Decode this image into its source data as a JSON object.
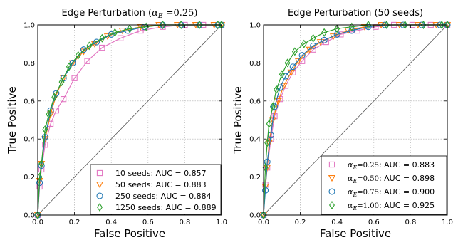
{
  "chart_data": [
    {
      "type": "line",
      "title": "Edge Perturbation (α_E =0.25)",
      "title_main": "Edge Perturbation (",
      "title_sym": "α",
      "title_sub": "E",
      "title_rest": " =0.25)",
      "xlabel": "False Positive",
      "ylabel": "True Positive",
      "xlim": [
        0,
        1
      ],
      "ylim": [
        0,
        1
      ],
      "xticks": [
        "0.0",
        "0.2",
        "0.4",
        "0.6",
        "0.8",
        "1.0"
      ],
      "yticks": [
        "0.0",
        "0.2",
        "0.4",
        "0.6",
        "0.8",
        "1.0"
      ],
      "grid": true,
      "diagonal": true,
      "legend_position": "bottom-right",
      "series": [
        {
          "name": "10 seeds: AUC = 0.857",
          "legend_prefix": "",
          "legend_label": "10 seeds: AUC = 0.857",
          "color": "#e377c2",
          "marker": "square",
          "x": [
            0.0,
            0.01,
            0.02,
            0.04,
            0.07,
            0.1,
            0.14,
            0.2,
            0.27,
            0.35,
            0.45,
            0.56,
            0.68,
            0.8,
            0.9,
            1.0
          ],
          "y": [
            0.0,
            0.15,
            0.24,
            0.37,
            0.48,
            0.55,
            0.61,
            0.72,
            0.81,
            0.88,
            0.93,
            0.97,
            0.99,
            1.0,
            1.0,
            1.0
          ]
        },
        {
          "name": "50 seeds: AUC = 0.883",
          "legend_prefix": "",
          "legend_label": "50 seeds: AUC = 0.883",
          "color": "#ff7f0e",
          "marker": "triangle-down",
          "x": [
            0.0,
            0.01,
            0.02,
            0.04,
            0.07,
            0.1,
            0.14,
            0.19,
            0.25,
            0.31,
            0.38,
            0.46,
            0.56,
            0.66,
            0.76,
            0.86,
            0.96,
            1.0
          ],
          "y": [
            0.0,
            0.18,
            0.27,
            0.4,
            0.53,
            0.63,
            0.72,
            0.8,
            0.86,
            0.9,
            0.94,
            0.97,
            0.99,
            1.0,
            1.0,
            1.0,
            1.0,
            1.0
          ]
        },
        {
          "name": "250 seeds: AUC = 0.884",
          "legend_prefix": "",
          "legend_label": "250 seeds: AUC = 0.884",
          "color": "#1f77b4",
          "marker": "circle",
          "x": [
            0.0,
            0.01,
            0.02,
            0.04,
            0.07,
            0.1,
            0.14,
            0.19,
            0.25,
            0.32,
            0.4,
            0.49,
            0.58,
            0.68,
            0.78,
            0.88,
            0.98,
            1.0
          ],
          "y": [
            0.0,
            0.17,
            0.26,
            0.41,
            0.55,
            0.64,
            0.72,
            0.8,
            0.87,
            0.91,
            0.95,
            0.97,
            0.99,
            1.0,
            1.0,
            1.0,
            1.0,
            1.0
          ]
        },
        {
          "name": "1250 seeds: AUC = 0.889",
          "legend_prefix": "",
          "legend_label": "1250 seeds: AUC = 0.889",
          "color": "#2ca02c",
          "marker": "diamond",
          "x": [
            0.0,
            0.01,
            0.02,
            0.04,
            0.06,
            0.09,
            0.13,
            0.17,
            0.22,
            0.28,
            0.35,
            0.42,
            0.5,
            0.59,
            0.68,
            0.78,
            0.88,
            0.98,
            1.0
          ],
          "y": [
            0.0,
            0.2,
            0.27,
            0.45,
            0.53,
            0.62,
            0.7,
            0.78,
            0.84,
            0.89,
            0.93,
            0.96,
            0.98,
            0.99,
            1.0,
            1.0,
            1.0,
            1.0,
            1.0
          ]
        }
      ]
    },
    {
      "type": "line",
      "title": "Edge Perturbation (50 seeds)",
      "title_main": "Edge Perturbation (50 seeds)",
      "title_sym": "",
      "title_sub": "",
      "title_rest": "",
      "xlabel": "False Positive",
      "ylabel": "True Positive",
      "xlim": [
        0,
        1
      ],
      "ylim": [
        0,
        1
      ],
      "xticks": [
        "0.0",
        "0.2",
        "0.4",
        "0.6",
        "0.8",
        "1.0"
      ],
      "yticks": [
        "0.0",
        "0.2",
        "0.4",
        "0.6",
        "0.8",
        "1.0"
      ],
      "grid": true,
      "diagonal": true,
      "legend_position": "bottom-right",
      "series": [
        {
          "name": "α_E =0.25: AUC = 0.883",
          "legend_prefix": "=0.25",
          "legend_label": ": AUC = 0.883",
          "color": "#e377c2",
          "marker": "square",
          "x": [
            0.0,
            0.01,
            0.02,
            0.04,
            0.06,
            0.09,
            0.12,
            0.16,
            0.21,
            0.27,
            0.34,
            0.42,
            0.51,
            0.61,
            0.71,
            0.81,
            0.91,
            1.0
          ],
          "y": [
            0.0,
            0.16,
            0.25,
            0.4,
            0.52,
            0.61,
            0.68,
            0.75,
            0.81,
            0.87,
            0.91,
            0.95,
            0.97,
            0.99,
            1.0,
            1.0,
            1.0,
            1.0
          ]
        },
        {
          "name": "α_E =0.50: AUC = 0.898",
          "legend_prefix": "=0.50",
          "legend_label": ": AUC = 0.898",
          "color": "#ff7f0e",
          "marker": "triangle-down",
          "x": [
            0.0,
            0.01,
            0.02,
            0.03,
            0.05,
            0.08,
            0.11,
            0.15,
            0.19,
            0.25,
            0.31,
            0.38,
            0.46,
            0.55,
            0.64,
            0.74,
            0.84,
            0.94,
            1.0
          ],
          "y": [
            0.0,
            0.15,
            0.25,
            0.38,
            0.5,
            0.6,
            0.68,
            0.75,
            0.81,
            0.87,
            0.91,
            0.94,
            0.97,
            0.99,
            1.0,
            1.0,
            1.0,
            1.0,
            1.0
          ]
        },
        {
          "name": "α_E =0.75: AUC = 0.900",
          "legend_prefix": "=0.75",
          "legend_label": ": AUC = 0.900",
          "color": "#1f77b4",
          "marker": "circle",
          "x": [
            0.0,
            0.01,
            0.02,
            0.04,
            0.06,
            0.09,
            0.12,
            0.16,
            0.21,
            0.27,
            0.33,
            0.4,
            0.48,
            0.57,
            0.66,
            0.76,
            0.86,
            0.96,
            1.0
          ],
          "y": [
            0.0,
            0.13,
            0.28,
            0.42,
            0.57,
            0.67,
            0.73,
            0.78,
            0.84,
            0.89,
            0.92,
            0.95,
            0.97,
            0.99,
            1.0,
            1.0,
            1.0,
            1.0,
            1.0
          ]
        },
        {
          "name": "α_E =1.00: AUC = 0.925",
          "legend_prefix": "=1.00",
          "legend_label": ": AUC = 0.925",
          "color": "#2ca02c",
          "marker": "diamond",
          "x": [
            0.0,
            0.01,
            0.02,
            0.03,
            0.05,
            0.07,
            0.1,
            0.13,
            0.17,
            0.22,
            0.27,
            0.33,
            0.4,
            0.48,
            0.57,
            0.67,
            0.77,
            0.87,
            0.97,
            1.0
          ],
          "y": [
            0.0,
            0.25,
            0.38,
            0.48,
            0.57,
            0.66,
            0.74,
            0.8,
            0.86,
            0.9,
            0.93,
            0.96,
            0.98,
            0.99,
            1.0,
            1.0,
            1.0,
            1.0,
            1.0,
            1.0
          ]
        }
      ]
    }
  ]
}
